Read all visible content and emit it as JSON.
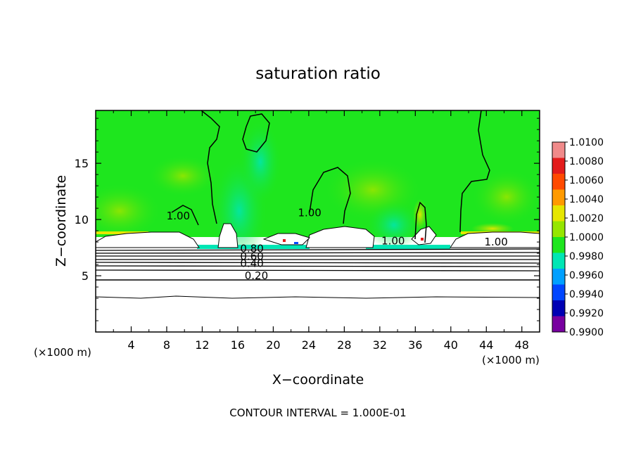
{
  "chart_data": {
    "type": "heatmap",
    "title": "saturation ratio",
    "xlabel": "X−coordinate",
    "ylabel": "Z−coordinate",
    "x_unit_left": "(×1000 m)",
    "x_unit_right": "(×1000 m)",
    "xlim": [
      0,
      50
    ],
    "ylim": [
      0,
      19.7
    ],
    "x_ticks": [
      4,
      8,
      12,
      16,
      20,
      24,
      28,
      32,
      36,
      40,
      44,
      48
    ],
    "y_ticks": [
      5,
      10,
      15
    ],
    "colorbar": {
      "levels": [
        "1.0100",
        "1.0080",
        "1.0060",
        "1.0040",
        "1.0020",
        "1.0000",
        "0.9980",
        "0.9960",
        "0.9940",
        "0.9920",
        "0.9900"
      ],
      "colors": [
        "#f08a8a",
        "#e31c1c",
        "#ff4a00",
        "#ff9a00",
        "#e6e600",
        "#96e600",
        "#1ee61e",
        "#00e6b4",
        "#00a0ff",
        "#0046ff",
        "#0000b4",
        "#7800a0"
      ]
    },
    "contour_labels": [
      {
        "text": "0.20",
        "x": 18.1,
        "y": 4.7
      },
      {
        "text": "0.40",
        "x": 17.6,
        "y": 5.8
      },
      {
        "text": "0.60",
        "x": 17.6,
        "y": 6.4
      },
      {
        "text": "0.80",
        "x": 17.6,
        "y": 7.1
      },
      {
        "text": "1.00",
        "x": 24.1,
        "y": 10.3
      },
      {
        "text": "1.00",
        "x": 9.3,
        "y": 10.0
      },
      {
        "text": "1.00",
        "x": 33.5,
        "y": 7.8
      },
      {
        "text": "1.00",
        "x": 45.1,
        "y": 7.7
      }
    ],
    "contour_interval_text": "CONTOUR INTERVAL = 1.000E-01"
  }
}
